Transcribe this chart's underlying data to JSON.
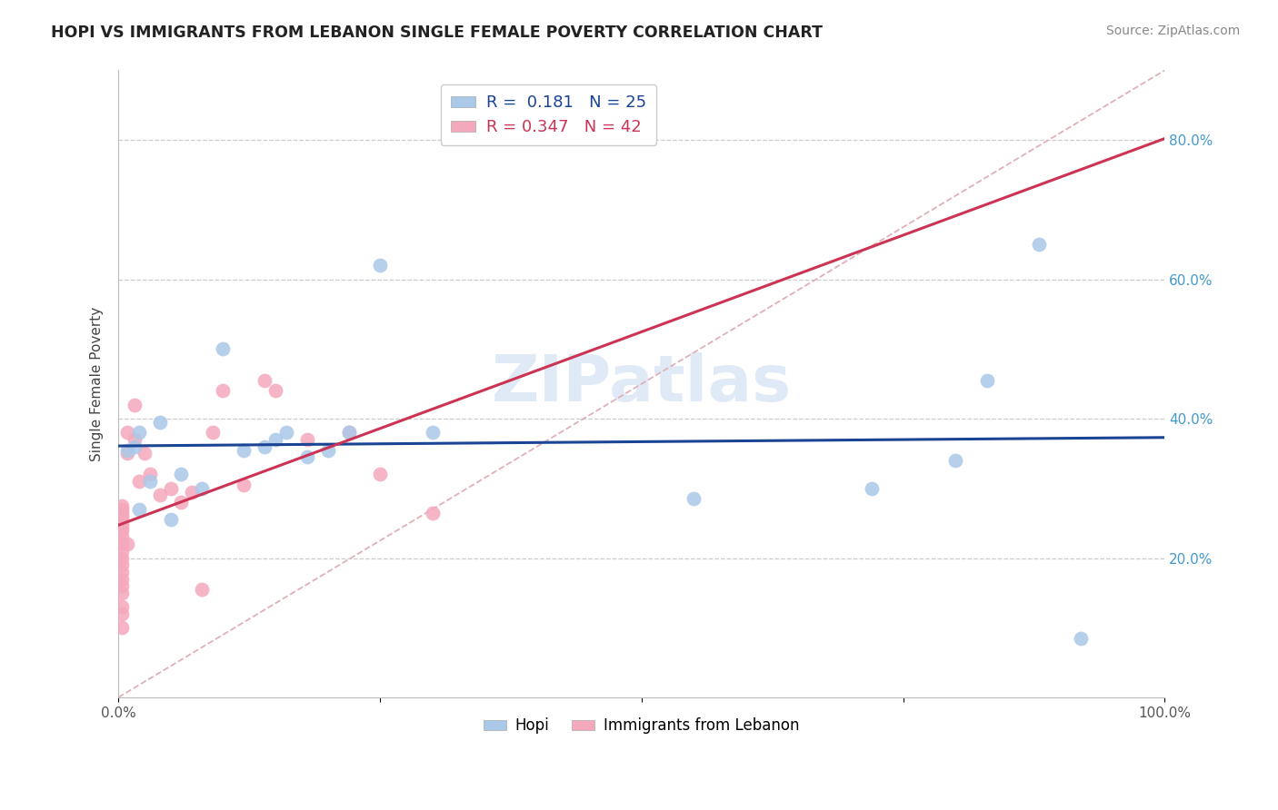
{
  "title": "HOPI VS IMMIGRANTS FROM LEBANON SINGLE FEMALE POVERTY CORRELATION CHART",
  "source": "Source: ZipAtlas.com",
  "ylabel_label": "Single Female Poverty",
  "xlim": [
    0.0,
    1.0
  ],
  "ylim": [
    0.0,
    0.9
  ],
  "ytick_vals": [
    0.2,
    0.4,
    0.6,
    0.8
  ],
  "ytick_labels": [
    "20.0%",
    "40.0%",
    "60.0%",
    "80.0%"
  ],
  "hopi_R": 0.181,
  "hopi_N": 25,
  "lebanon_R": 0.347,
  "lebanon_N": 42,
  "hopi_color": "#aac8e8",
  "lebanon_color": "#f4a8bc",
  "hopi_line_color": "#1a4494",
  "lebanon_line_color": "#cc3355",
  "diagonal_color": "#e0b0b8",
  "background_color": "#ffffff",
  "grid_color": "#cccccc",
  "hopi_x": [
    0.008,
    0.015,
    0.02,
    0.03,
    0.04,
    0.06,
    0.08,
    0.1,
    0.12,
    0.14,
    0.16,
    0.18,
    0.22,
    0.25,
    0.3,
    0.55,
    0.72,
    0.8,
    0.83,
    0.88,
    0.92,
    0.02,
    0.05,
    0.2,
    0.15
  ],
  "hopi_y": [
    0.355,
    0.36,
    0.38,
    0.31,
    0.395,
    0.32,
    0.3,
    0.5,
    0.355,
    0.36,
    0.38,
    0.345,
    0.38,
    0.62,
    0.38,
    0.285,
    0.3,
    0.34,
    0.455,
    0.65,
    0.085,
    0.27,
    0.255,
    0.355,
    0.37
  ],
  "lebanon_x": [
    0.003,
    0.003,
    0.003,
    0.003,
    0.003,
    0.003,
    0.003,
    0.003,
    0.003,
    0.003,
    0.003,
    0.003,
    0.003,
    0.003,
    0.003,
    0.003,
    0.003,
    0.003,
    0.003,
    0.003,
    0.008,
    0.008,
    0.008,
    0.015,
    0.015,
    0.02,
    0.025,
    0.03,
    0.04,
    0.05,
    0.06,
    0.07,
    0.08,
    0.09,
    0.1,
    0.12,
    0.14,
    0.15,
    0.18,
    0.22,
    0.25,
    0.3
  ],
  "lebanon_y": [
    0.24,
    0.245,
    0.25,
    0.255,
    0.26,
    0.265,
    0.27,
    0.275,
    0.1,
    0.12,
    0.13,
    0.15,
    0.16,
    0.17,
    0.18,
    0.19,
    0.2,
    0.21,
    0.22,
    0.23,
    0.22,
    0.35,
    0.38,
    0.37,
    0.42,
    0.31,
    0.35,
    0.32,
    0.29,
    0.3,
    0.28,
    0.295,
    0.155,
    0.38,
    0.44,
    0.305,
    0.455,
    0.44,
    0.37,
    0.38,
    0.32,
    0.265
  ]
}
